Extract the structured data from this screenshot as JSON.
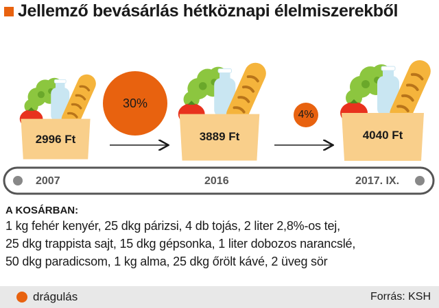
{
  "title": "Jellemző bevásárlás hétköznapi élelmiszerekből",
  "baskets": [
    {
      "year": "2007",
      "price": "2996 Ft"
    },
    {
      "year": "2016",
      "price": "3889 Ft"
    },
    {
      "year": "2017. IX.",
      "price": "4040 Ft"
    }
  ],
  "increases": [
    "30%",
    "4%"
  ],
  "basket_contents": {
    "heading": "A KOSÁRBAN:",
    "lines": [
      "1 kg fehér kenyér, 25 dkg párizsi, 4 db tojás, 2 liter 2,8%-os tej,",
      "25 dkg trappista sajt, 15 dkg gépsonka, 1 liter dobozos narancslé,",
      "50 dkg paradicsom, 1 kg alma, 25 dkg őrölt kávé, 2 üveg sör"
    ]
  },
  "legend": {
    "label": "drágulás",
    "color": "#e8620f"
  },
  "source": "Forrás: KSH",
  "colors": {
    "accent": "#e8620f",
    "bag": "#f9cf8b",
    "bread": "#f5b43c",
    "lettuce": "#8cc63f",
    "tomato": "#e8321e",
    "milk": "#c9e6f2"
  }
}
